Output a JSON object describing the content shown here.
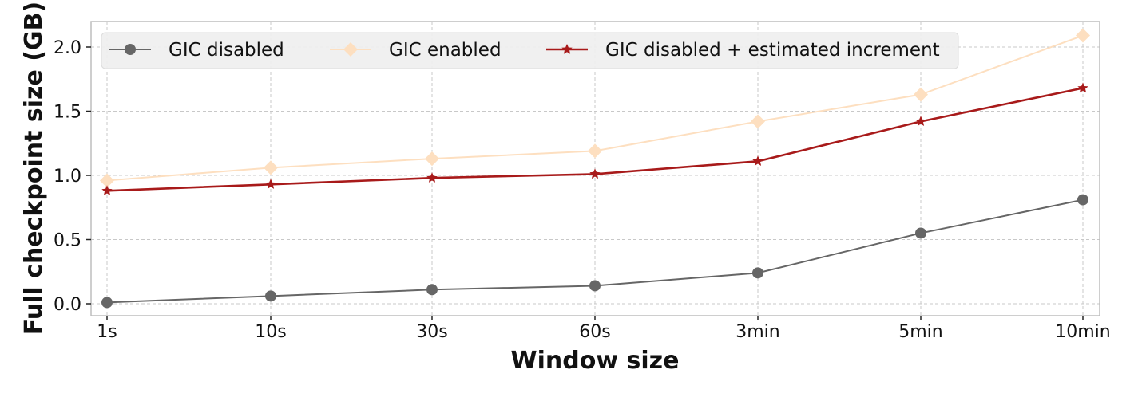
{
  "chart_data": {
    "type": "line",
    "title": "",
    "xlabel": "Window size",
    "ylabel": "Full checkpoint size (GB)",
    "categories": [
      "1s",
      "10s",
      "30s",
      "60s",
      "3min",
      "5min",
      "10min"
    ],
    "yticks": [
      "0.0",
      "0.5",
      "1.0",
      "1.5",
      "2.0"
    ],
    "ylim": [
      -0.09,
      2.2
    ],
    "grid": true,
    "legend_position": "upper left",
    "series": [
      {
        "name": "GIC disabled",
        "marker": "circle",
        "color": "#666666",
        "values": [
          0.01,
          0.06,
          0.11,
          0.14,
          0.24,
          0.55,
          0.81
        ]
      },
      {
        "name": "GIC enabled",
        "marker": "diamond",
        "color": "#FDDFC0",
        "values": [
          0.96,
          1.06,
          1.13,
          1.19,
          1.42,
          1.63,
          2.09
        ]
      },
      {
        "name": "GIC disabled + estimated increment",
        "marker": "star",
        "color": "#A81A1A",
        "values": [
          0.88,
          0.93,
          0.98,
          1.01,
          1.11,
          1.42,
          1.68
        ]
      }
    ]
  }
}
